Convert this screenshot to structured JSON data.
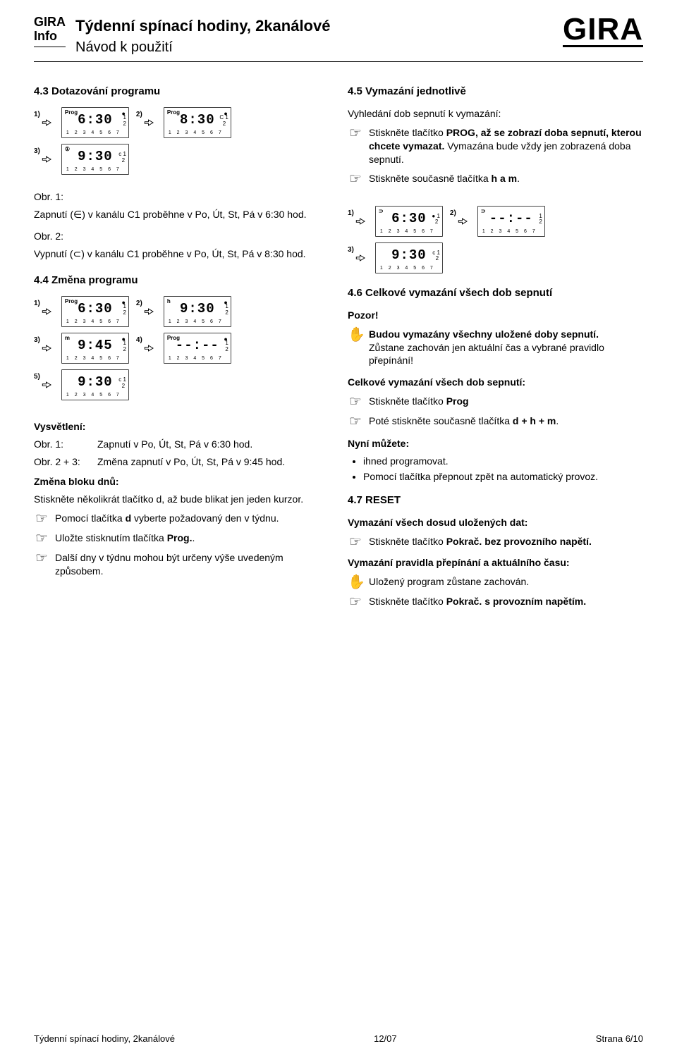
{
  "header": {
    "brand1": "GIRA",
    "brand2": "Info",
    "title": "Týdenní spínací hodiny, 2kanálové",
    "subtitle": "Návod k použití",
    "logo": "GIRA"
  },
  "left": {
    "h43": "4.3  Dotazování programu",
    "lcd43": [
      {
        "num": "1)",
        "mode": "Prog",
        "big": "6:30",
        "side": "1\n2",
        "corner": "●",
        "days": "1 2 3 4 5 6 7"
      },
      {
        "num": "2)",
        "mode": "Prog",
        "big": "8:30",
        "side": "C 1\n  2",
        "corner": "●",
        "days": "1 2 3 4 5 6 7"
      },
      {
        "num": "3)",
        "mode": "①",
        "big": "9:30",
        "side": "c 1\n  2",
        "corner": "",
        "days": "1 2 3 4 5 6 7"
      }
    ],
    "obr1_lbl": "Obr. 1:",
    "obr1_txt": "Zapnutí (∈) v kanálu C1 proběhne v Po, Út, St, Pá v 6:30 hod.",
    "obr2_lbl": "Obr. 2:",
    "obr2_txt": "Vypnutí (⊂) v kanálu C1 proběhne v Po, Út, St, Pá v 8:30 hod.",
    "h44": "4.4  Změna programu",
    "lcd44": [
      {
        "num": "1)",
        "mode": "Prog",
        "big": "6:30",
        "side": "1\n2",
        "corner": "●",
        "days": "1 2 3 4 5 6 7"
      },
      {
        "num": "2)",
        "mode": "h",
        "big": "9:30",
        "side": "1\n2",
        "corner": "●",
        "days": "1 2 3 4 5 6 7"
      },
      {
        "num": "3)",
        "mode": "m",
        "big": "9:45",
        "side": "1\n2",
        "corner": "●",
        "days": "1 2 3 4 5 6 7"
      },
      {
        "num": "4)",
        "mode": "Prog",
        "big": "--:--",
        "side": "1\n2",
        "corner": "●",
        "days": "1 2 3 4 5 6 7"
      },
      {
        "num": "5)",
        "mode": "",
        "big": "9:30",
        "side": "c 1\n  2",
        "corner": "",
        "days": "1 2 3 4 5 6 7"
      }
    ],
    "expl_h": "Vysvětlení:",
    "expl_r1_lbl": "Obr. 1:",
    "expl_r1_txt": "Zapnutí v Po, Út, St, Pá v 6:30 hod.",
    "expl_r2_lbl": "Obr. 2 + 3:",
    "expl_r2_txt": "Změna zapnutí v Po, Út, St, Pá v 9:45 hod.",
    "blk_h": "Změna bloku dnů:",
    "blk_txt": "Stiskněte několikrát tlačítko d, až bude blikat jen jeden kurzor.",
    "p1": "Pomocí tlačítka <b>d</b> vyberte požadovaný den v týdnu.",
    "p2": "Uložte stisknutím tlačítka <b>Prog.</b>.",
    "p3": "Další dny v týdnu mohou být určeny výše uvedeným způsobem."
  },
  "right": {
    "h45": "4.5  Vymazání jednotlivě",
    "r45_lead": "Vyhledání dob sepnutí k vymazání:",
    "r45_p1": "Stiskněte tlačítko <b>PROG, až se zobrazí doba sepnutí, kterou chcete vymazat.</b> Vymazána bude vždy jen zobrazená doba sepnutí.",
    "r45_p2": "Stiskněte současně tlačítka <b>h a m</b>.",
    "lcd45": [
      {
        "num": "1)",
        "mode": "⊃",
        "big": "6:30",
        "side": "● 1\n  2",
        "corner": "",
        "days": "1 2 3 4 5 6 7"
      },
      {
        "num": "2)",
        "mode": "⊃",
        "big": "--:--",
        "side": "1\n2",
        "corner": "",
        "days": "1 2 3 4 5 6 7"
      },
      {
        "num": "3)",
        "mode": "",
        "big": "9:30",
        "side": "c 1\n  2",
        "corner": "",
        "days": "1 2 3 4 5 6 7"
      }
    ],
    "h46": "4.6  Celkové vymazání všech dob sepnutí",
    "r46_pozor": "Pozor!",
    "r46_warn": "<b>Budou vymazány všechny uložené doby sepnutí.</b><br>Zůstane zachován jen aktuální čas a vybrané pravidlo přepínání!",
    "r46_h2": "Celkové vymazání všech dob sepnutí:",
    "r46_p1": "Stiskněte tlačítko <b>Prog</b>",
    "r46_p2": "Poté stiskněte současně tlačítka <b>d + h + m</b>.",
    "r46_now": "Nyní můžete:",
    "r46_li1": "ihned programovat.",
    "r46_li2": "Pomocí tlačítka přepnout zpět na automatický provoz.",
    "h47": "4.7  RESET",
    "r47_h1": "Vymazání všech dosud uložených dat:",
    "r47_p1": "Stiskněte tlačítko <b>Pokrač. bez provozního napětí.</b>",
    "r47_h2": "Vymazání pravidla přepínání a aktuálního času:",
    "r47_p2": "Uložený program zůstane zachován.",
    "r47_p3": "Stiskněte tlačítko <b>Pokrač. s provozním napětím.</b>"
  },
  "footer": {
    "left": "Týdenní spínací hodiny, 2kanálové",
    "mid": "12/07",
    "right": "Strana 6/10"
  }
}
